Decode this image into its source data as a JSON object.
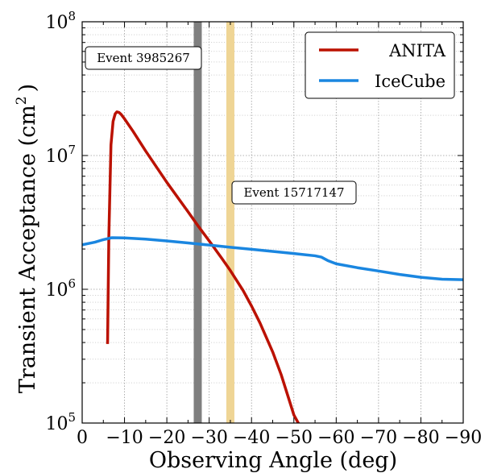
{
  "chart_data": {
    "type": "line",
    "xlabel": "Observing Angle (deg)",
    "ylabel_main": "Transient Acceptance (cm",
    "ylabel_sup": "2",
    "ylabel_close": ")",
    "xlim": [
      0,
      -90
    ],
    "ylim": [
      100000,
      100000000
    ],
    "yscale": "log",
    "grid": true,
    "legend_position": "top-right",
    "x_ticks": [
      0,
      -10,
      -20,
      -30,
      -40,
      -50,
      -60,
      -70,
      -80,
      -90
    ],
    "x_tick_labels": [
      "0",
      "−10",
      "−20",
      "−30",
      "−40",
      "−50",
      "−60",
      "−70",
      "−80",
      "−90"
    ],
    "y_ticks": [
      {
        "value": 100000,
        "base": "10",
        "exp": "5"
      },
      {
        "value": 1000000,
        "base": "10",
        "exp": "6"
      },
      {
        "value": 10000000,
        "base": "10",
        "exp": "7"
      },
      {
        "value": 100000000,
        "base": "10",
        "exp": "8"
      }
    ],
    "series": [
      {
        "name": "ANITA",
        "color": "#bb1100",
        "x": [
          -6,
          -6.3,
          -6.8,
          -7.3,
          -7.8,
          -8.2,
          -8.7,
          -9.2,
          -10,
          -12,
          -15,
          -20,
          -25,
          -27.3,
          -30,
          -33,
          -35,
          -38,
          -40,
          -42,
          -45,
          -47,
          -49,
          -50,
          -51.2
        ],
        "y": [
          390000,
          2500000,
          12000000,
          18000000,
          20500000,
          21200000,
          21000000,
          20300000,
          18800000,
          15200000,
          10800000,
          6300000,
          3800000,
          3000000,
          2300000,
          1700000,
          1380000,
          980000,
          750000,
          560000,
          340000,
          230000,
          145000,
          115000,
          98000
        ]
      },
      {
        "name": "IceCube",
        "color": "#1a86e0",
        "x": [
          0,
          -3,
          -5,
          -7,
          -10,
          -15,
          -20,
          -25,
          -30,
          -35,
          -40,
          -45,
          -50,
          -55,
          -56.5,
          -58,
          -60,
          -65,
          -70,
          -75,
          -80,
          -85,
          -90
        ],
        "y": [
          2150000,
          2250000,
          2350000,
          2430000,
          2420000,
          2370000,
          2300000,
          2220000,
          2140000,
          2060000,
          1990000,
          1920000,
          1850000,
          1780000,
          1740000,
          1640000,
          1550000,
          1450000,
          1370000,
          1290000,
          1230000,
          1190000,
          1180000
        ]
      }
    ],
    "vertical_bands": [
      {
        "x": -27.3,
        "color": "#7f7f7f",
        "label": "Event 3985267"
      },
      {
        "x": -35,
        "color": "#efd595",
        "label": "Event 15717147"
      }
    ]
  }
}
